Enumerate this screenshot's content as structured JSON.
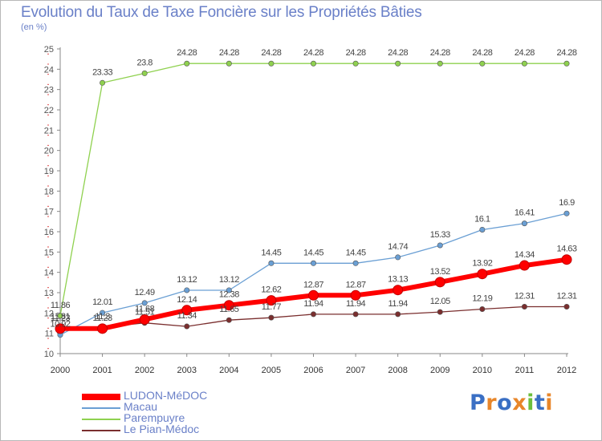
{
  "header": {
    "title": "Evolution du Taux de Taxe Foncière sur les Propriétés Bâties",
    "unit": "(en %)"
  },
  "logo": {
    "text": "Proxiti",
    "colors": [
      "#3a6fc4",
      "#e8862a",
      "#3a6fc4",
      "#e8862a",
      "#6cbf3c",
      "#3a6fc4",
      "#e8862a"
    ]
  },
  "chart_data": {
    "type": "line",
    "x": [
      "2000",
      "2001",
      "2002",
      "2003",
      "2004",
      "2005",
      "2006",
      "2007",
      "2008",
      "2009",
      "2010",
      "2011",
      "2012"
    ],
    "ylim": [
      10,
      25
    ],
    "yticks": [
      10,
      11,
      12,
      13,
      14,
      15,
      16,
      17,
      18,
      19,
      20,
      21,
      22,
      23,
      24,
      25
    ],
    "grid": false,
    "legend_position": "bottom-left",
    "series": [
      {
        "name": "LUDON-MéDOC",
        "color": "#ff0000",
        "width": "thick",
        "values": [
          11.23,
          11.23,
          11.68,
          12.14,
          12.38,
          12.62,
          12.87,
          12.87,
          13.13,
          13.52,
          13.92,
          14.34,
          14.63
        ]
      },
      {
        "name": "Macau",
        "color": "#6a9fd4",
        "width": "thin",
        "values": [
          10.92,
          12.01,
          12.49,
          13.12,
          13.12,
          14.45,
          14.45,
          14.45,
          14.74,
          15.33,
          16.1,
          16.41,
          16.9
        ]
      },
      {
        "name": "Parempuyre",
        "color": "#8fd14f",
        "width": "thin",
        "values": [
          11.86,
          23.33,
          23.8,
          24.28,
          24.28,
          24.28,
          24.28,
          24.28,
          24.28,
          24.28,
          24.28,
          24.28,
          24.28
        ]
      },
      {
        "name": "Le Pian-Médoc",
        "color": "#7a2e2e",
        "width": "thin",
        "values": [
          11.31,
          11.3,
          11.51,
          11.34,
          11.65,
          11.77,
          11.94,
          11.94,
          11.94,
          12.05,
          12.19,
          12.31,
          12.31
        ]
      }
    ],
    "label_order": [
      "Parempuyre",
      "Macau",
      "Le Pian-Médoc",
      "LUDON-MéDOC"
    ]
  }
}
